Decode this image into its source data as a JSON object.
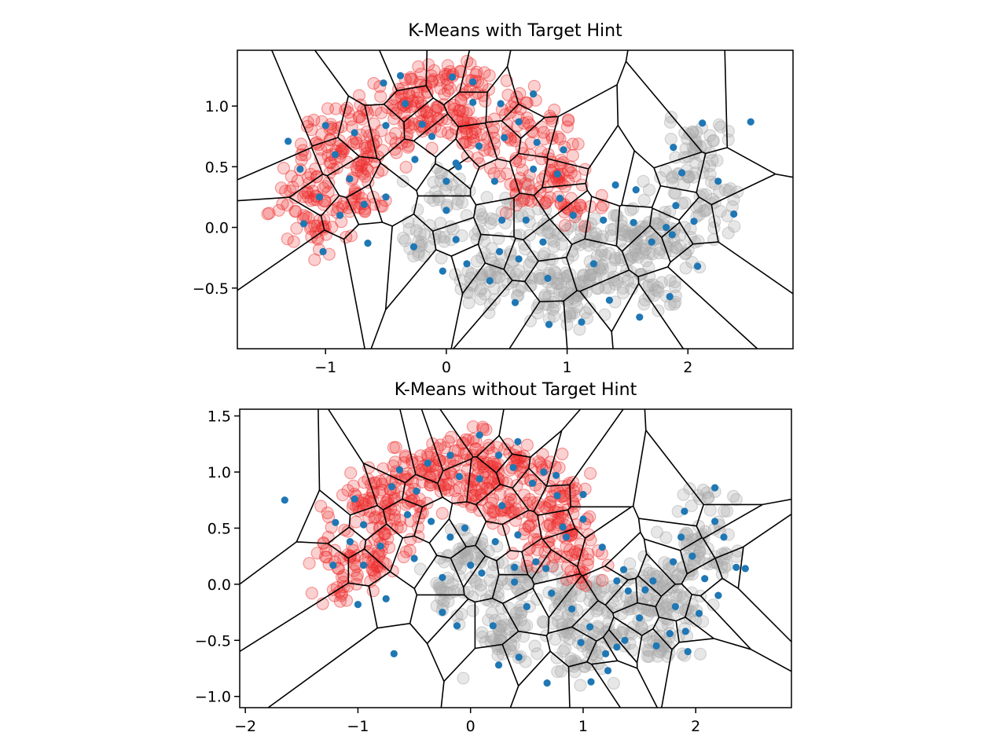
{
  "chart_data": [
    {
      "type": "scatter",
      "title": "K-Means with Target Hint",
      "xlabel": "",
      "ylabel": "",
      "xlim": [
        -1.73,
        2.87
      ],
      "ylim": [
        -1.0,
        1.46
      ],
      "xticks": [
        -1,
        0,
        1,
        2
      ],
      "yticks": [
        -0.5,
        0.0,
        0.5,
        1.0
      ],
      "xtick_labels": [
        "−1",
        "0",
        "1",
        "2"
      ],
      "ytick_labels": [
        "−0.5",
        "0.0",
        "0.5",
        "1.0"
      ],
      "grid": false,
      "legend": "none",
      "colors": {
        "class_0": "#ee2a2a",
        "class_1": "#a8a8a8",
        "centers": "#1f77b4",
        "edges": "#000000"
      },
      "series": [
        {
          "values": [
            [
              -1.2,
              0.3
            ],
            [
              -1.0,
              0.6
            ],
            [
              -0.9,
              0.85
            ],
            [
              -0.6,
              1.0
            ],
            [
              -0.3,
              1.1
            ],
            [
              0.0,
              1.2
            ],
            [
              0.3,
              1.15
            ],
            [
              0.6,
              1.0
            ],
            [
              0.8,
              0.8
            ],
            [
              0.9,
              0.5
            ],
            [
              1.0,
              0.2
            ],
            [
              -1.1,
              0.0
            ],
            [
              -0.8,
              0.2
            ],
            [
              -0.5,
              0.7
            ],
            [
              -0.2,
              0.9
            ],
            [
              0.1,
              0.95
            ],
            [
              0.5,
              0.6
            ],
            [
              0.7,
              0.3
            ],
            [
              -0.7,
              0.5
            ],
            [
              0.2,
              0.75
            ]
          ]
        },
        {
          "values": [
            [
              0.0,
              0.3
            ],
            [
              0.2,
              0.0
            ],
            [
              0.4,
              -0.3
            ],
            [
              0.7,
              -0.4
            ],
            [
              1.0,
              -0.5
            ],
            [
              1.3,
              -0.4
            ],
            [
              1.6,
              -0.2
            ],
            [
              1.8,
              0.1
            ],
            [
              2.0,
              0.4
            ],
            [
              2.1,
              0.7
            ],
            [
              1.5,
              0.0
            ],
            [
              1.2,
              -0.1
            ],
            [
              0.8,
              -0.1
            ],
            [
              0.5,
              0.1
            ],
            [
              -0.2,
              -0.1
            ],
            [
              0.3,
              -0.5
            ],
            [
              1.0,
              -0.7
            ],
            [
              1.7,
              -0.5
            ],
            [
              1.9,
              -0.2
            ],
            [
              2.2,
              0.2
            ]
          ]
        },
        {
          "values": [
            [
              -1.31,
              0.71
            ],
            [
              -1.21,
              0.48
            ],
            [
              -1.05,
              0.25
            ],
            [
              -1.0,
              0.84
            ],
            [
              -0.92,
              0.6
            ],
            [
              -0.88,
              0.1
            ],
            [
              -0.8,
              0.4
            ],
            [
              -0.76,
              0.78
            ],
            [
              -0.68,
              0.19
            ],
            [
              -0.52,
              1.19
            ],
            [
              -0.5,
              0.84
            ],
            [
              -0.38,
              1.25
            ],
            [
              -0.34,
              1.02
            ],
            [
              -0.26,
              0.56
            ],
            [
              -0.2,
              0.85
            ],
            [
              -0.12,
              0.75
            ],
            [
              0.05,
              1.24
            ],
            [
              0.08,
              0.53
            ],
            [
              0.22,
              1.2
            ],
            [
              0.22,
              1.03
            ],
            [
              0.27,
              0.67
            ],
            [
              0.45,
              1.02
            ],
            [
              0.48,
              0.74
            ],
            [
              0.6,
              0.87
            ],
            [
              0.72,
              1.1
            ],
            [
              0.75,
              0.7
            ],
            [
              0.72,
              0.48
            ],
            [
              0.92,
              0.44
            ],
            [
              0.97,
              0.64
            ],
            [
              0.94,
              0.24
            ],
            [
              1.05,
              0.1
            ],
            [
              -1.18,
              0.03
            ],
            [
              -1.02,
              -0.2
            ],
            [
              -0.65,
              -0.13
            ],
            [
              -0.5,
              0.25
            ],
            [
              0.0,
              0.38
            ],
            [
              0.0,
              0.14
            ],
            [
              0.1,
              0.5
            ],
            [
              0.4,
              0.38
            ],
            [
              0.46,
              0.06
            ],
            [
              -0.27,
              -0.16
            ],
            [
              -0.03,
              -0.36
            ],
            [
              0.08,
              -0.1
            ],
            [
              0.17,
              -0.3
            ],
            [
              0.36,
              -0.44
            ],
            [
              0.44,
              -0.2
            ],
            [
              0.57,
              -0.62
            ],
            [
              0.6,
              -0.26
            ],
            [
              0.66,
              0.06
            ],
            [
              0.8,
              -0.12
            ],
            [
              0.84,
              -0.42
            ],
            [
              0.85,
              -0.8
            ],
            [
              1.12,
              -0.78
            ],
            [
              1.22,
              -0.3
            ],
            [
              1.3,
              0.06
            ],
            [
              1.35,
              -0.6
            ],
            [
              1.4,
              0.35
            ],
            [
              1.55,
              0.04
            ],
            [
              1.7,
              -0.12
            ],
            [
              1.82,
              0.0
            ],
            [
              1.87,
              -0.06
            ],
            [
              1.9,
              0.18
            ],
            [
              1.95,
              0.45
            ],
            [
              2.05,
              0.05
            ],
            [
              2.08,
              -0.32
            ],
            [
              2.12,
              0.86
            ],
            [
              2.25,
              0.38
            ],
            [
              2.38,
              0.11
            ],
            [
              2.52,
              0.87
            ],
            [
              1.6,
              -0.74
            ],
            [
              1.85,
              -0.57
            ],
            [
              1.88,
              0.66
            ],
            [
              1.57,
              0.31
            ]
          ]
        }
      ]
    },
    {
      "type": "scatter",
      "title": "K-Means without Target Hint",
      "xlabel": "",
      "ylabel": "",
      "xlim": [
        -2.05,
        2.85
      ],
      "ylim": [
        -1.1,
        1.56
      ],
      "xticks": [
        -2,
        -1,
        0,
        1,
        2
      ],
      "yticks": [
        -1.0,
        -0.5,
        0.0,
        0.5,
        1.0,
        1.5
      ],
      "xtick_labels": [
        "−2",
        "−1",
        "0",
        "1",
        "2"
      ],
      "ytick_labels": [
        "−1.0",
        "−0.5",
        "0.0",
        "0.5",
        "1.0",
        "1.5"
      ],
      "grid": false,
      "legend": "none",
      "colors": {
        "class_0": "#ee2a2a",
        "class_1": "#a8a8a8",
        "centers": "#1f77b4",
        "edges": "#000000"
      },
      "series": [
        {
          "values": [
            [
              -1.2,
              0.3
            ],
            [
              -1.0,
              0.6
            ],
            [
              -0.9,
              0.85
            ],
            [
              -0.6,
              1.0
            ],
            [
              -0.3,
              1.1
            ],
            [
              0.0,
              1.2
            ],
            [
              0.3,
              1.15
            ],
            [
              0.6,
              1.0
            ],
            [
              0.8,
              0.8
            ],
            [
              0.9,
              0.5
            ],
            [
              1.0,
              0.2
            ],
            [
              -1.1,
              0.0
            ],
            [
              -0.8,
              0.2
            ],
            [
              -0.5,
              0.7
            ],
            [
              -0.2,
              0.9
            ],
            [
              0.1,
              0.95
            ],
            [
              0.5,
              0.6
            ],
            [
              0.7,
              0.3
            ],
            [
              -0.7,
              0.5
            ],
            [
              0.2,
              0.75
            ]
          ]
        },
        {
          "values": [
            [
              0.0,
              0.3
            ],
            [
              0.2,
              0.0
            ],
            [
              0.4,
              -0.3
            ],
            [
              0.7,
              -0.4
            ],
            [
              1.0,
              -0.5
            ],
            [
              1.3,
              -0.4
            ],
            [
              1.6,
              -0.2
            ],
            [
              1.8,
              0.1
            ],
            [
              2.0,
              0.4
            ],
            [
              2.1,
              0.7
            ],
            [
              1.5,
              0.0
            ],
            [
              1.2,
              -0.1
            ],
            [
              0.8,
              -0.1
            ],
            [
              0.5,
              0.1
            ],
            [
              -0.2,
              -0.1
            ],
            [
              0.3,
              -0.5
            ],
            [
              1.0,
              -0.7
            ],
            [
              1.7,
              -0.5
            ],
            [
              1.9,
              -0.2
            ],
            [
              2.2,
              0.2
            ]
          ]
        },
        {
          "values": [
            [
              -1.65,
              0.75
            ],
            [
              -1.2,
              0.55
            ],
            [
              -1.03,
              0.76
            ],
            [
              -1.07,
              0.38
            ],
            [
              -0.95,
              0.53
            ],
            [
              -0.95,
              0.17
            ],
            [
              -1.22,
              0.17
            ],
            [
              -1.0,
              -0.18
            ],
            [
              -0.75,
              -0.13
            ],
            [
              -0.8,
              0.34
            ],
            [
              -0.7,
              0.87
            ],
            [
              -0.63,
              1.02
            ],
            [
              -0.48,
              0.83
            ],
            [
              -0.56,
              0.62
            ],
            [
              -0.38,
              1.08
            ],
            [
              -0.18,
              1.15
            ],
            [
              -0.1,
              0.96
            ],
            [
              0.08,
              1.33
            ],
            [
              0.08,
              0.94
            ],
            [
              0.25,
              1.15
            ],
            [
              0.38,
              1.04
            ],
            [
              0.42,
              1.27
            ],
            [
              0.55,
              0.9
            ],
            [
              0.65,
              1.0
            ],
            [
              0.76,
              0.97
            ],
            [
              0.77,
              0.79
            ],
            [
              0.82,
              0.51
            ],
            [
              0.85,
              0.42
            ],
            [
              1.0,
              0.8
            ],
            [
              1.0,
              0.58
            ],
            [
              1.17,
              0.33
            ],
            [
              -0.25,
              0.06
            ],
            [
              -0.35,
              0.56
            ],
            [
              -0.18,
              0.42
            ],
            [
              -0.5,
              0.23
            ],
            [
              -0.05,
              0.5
            ],
            [
              0.0,
              0.17
            ],
            [
              0.28,
              0.7
            ],
            [
              0.1,
              0.1
            ],
            [
              0.22,
              0.38
            ],
            [
              0.42,
              0.44
            ],
            [
              0.39,
              0.15
            ],
            [
              0.39,
              0.02
            ],
            [
              0.58,
              0.2
            ],
            [
              0.67,
              0.14
            ],
            [
              0.72,
              -0.08
            ],
            [
              0.5,
              -0.2
            ],
            [
              0.9,
              -0.22
            ],
            [
              0.98,
              -0.52
            ],
            [
              1.06,
              -0.38
            ],
            [
              1.2,
              -0.62
            ],
            [
              1.37,
              -0.5
            ],
            [
              1.5,
              -0.3
            ],
            [
              1.65,
              -0.55
            ],
            [
              1.77,
              -0.44
            ],
            [
              1.82,
              -0.2
            ],
            [
              1.91,
              -0.42
            ],
            [
              1.93,
              -0.6
            ],
            [
              2.03,
              -0.26
            ],
            [
              2.2,
              -0.1
            ],
            [
              2.36,
              0.15
            ],
            [
              2.25,
              0.42
            ],
            [
              2.17,
              0.56
            ],
            [
              2.17,
              0.86
            ],
            [
              1.9,
              0.65
            ],
            [
              1.87,
              0.42
            ],
            [
              1.8,
              0.2
            ],
            [
              1.97,
              0.25
            ],
            [
              2.08,
              0.05
            ],
            [
              2.44,
              0.14
            ],
            [
              1.3,
              0.03
            ],
            [
              1.36,
              0.13
            ],
            [
              1.4,
              -0.06
            ],
            [
              1.55,
              -0.05
            ],
            [
              1.62,
              0.03
            ],
            [
              -0.25,
              -0.25
            ],
            [
              -0.12,
              -0.37
            ],
            [
              0.2,
              -0.37
            ],
            [
              0.43,
              -0.65
            ],
            [
              0.68,
              -0.88
            ],
            [
              1.22,
              -0.77
            ],
            [
              1.3,
              -0.56
            ],
            [
              1.07,
              -0.87
            ],
            [
              0.25,
              -0.72
            ],
            [
              -0.68,
              -0.62
            ]
          ]
        }
      ]
    }
  ]
}
